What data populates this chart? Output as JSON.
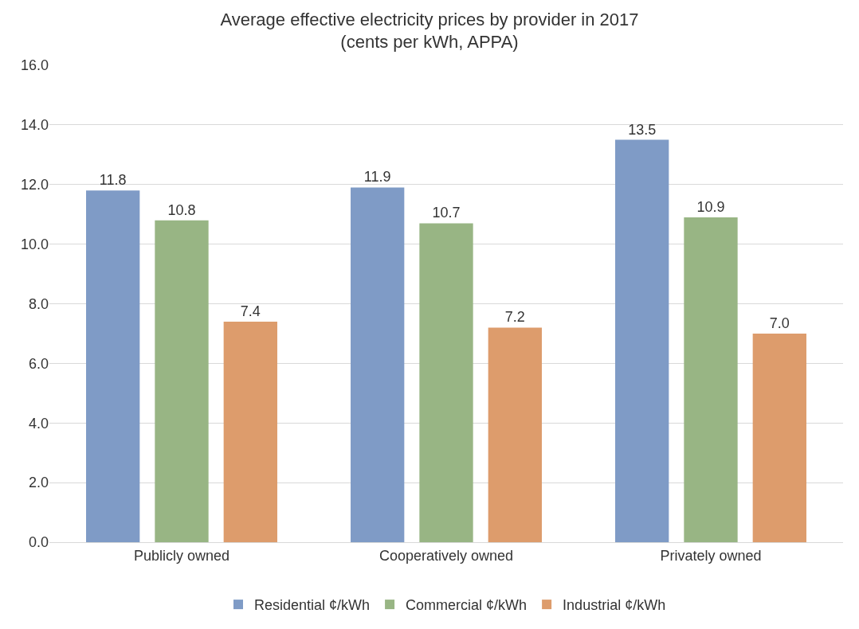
{
  "chart_data": {
    "type": "bar",
    "title": "Average effective electricity prices by provider in 2017\n(cents per kWh, APPA)",
    "categories": [
      "Publicly owned",
      "Cooperatively owned",
      "Privately owned"
    ],
    "series": [
      {
        "name": "Residential ¢/kWh",
        "color": "#7f9bc6",
        "values": [
          11.8,
          11.9,
          13.5
        ],
        "value_labels": [
          "11.8",
          "11.9",
          "13.5"
        ]
      },
      {
        "name": "Commercial ¢/kWh",
        "color": "#98b584",
        "values": [
          10.8,
          10.7,
          10.9
        ],
        "value_labels": [
          "10.8",
          "10.7",
          "10.9"
        ]
      },
      {
        "name": "Industrial ¢/kWh",
        "color": "#dd9c6c",
        "values": [
          7.4,
          7.2,
          7.0
        ],
        "value_labels": [
          "7.4",
          "7.2",
          "7.0"
        ]
      }
    ],
    "ylim": [
      0,
      16
    ],
    "yticks": [
      {
        "value": 0,
        "label": "0.0"
      },
      {
        "value": 2,
        "label": "2.0"
      },
      {
        "value": 4,
        "label": "4.0"
      },
      {
        "value": 6,
        "label": "6.0"
      },
      {
        "value": 8,
        "label": "8.0"
      },
      {
        "value": 10,
        "label": "10.0"
      },
      {
        "value": 12,
        "label": "12.0"
      },
      {
        "value": 14,
        "label": "14.0"
      },
      {
        "value": 16,
        "label": "16.0"
      }
    ],
    "grid": "y",
    "legend": "bottom"
  }
}
